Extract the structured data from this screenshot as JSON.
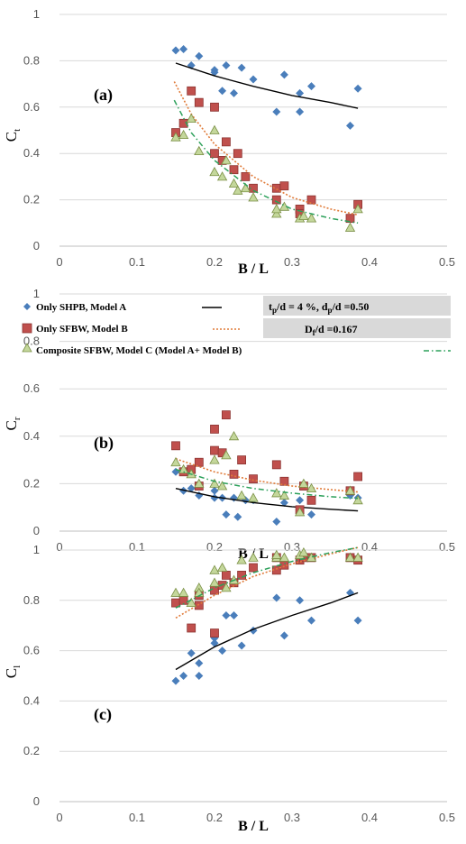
{
  "figure": {
    "legend": {
      "series_a": "Only SHPB, Model A",
      "series_b": "Only SFBW, Model B",
      "series_c": "Composite SFBW, Model C (Model A+ Model B)"
    },
    "params": {
      "line1_t": "t",
      "line1_t_sub": "p",
      "line1_a": "/d = 4 %, d",
      "line1_p_sub": "p",
      "line1_b": "/d =0.50",
      "line2_d": "D",
      "line2_sub": "f",
      "line2_rest": "/d =0.167"
    }
  },
  "chart_data": [
    {
      "type": "scatter",
      "panel_label": "(a)",
      "xlabel": "B / L",
      "ylabel": "C",
      "ylabel_sub": "t",
      "xlim": [
        0,
        0.5
      ],
      "ylim": [
        0,
        1
      ],
      "xticks": [
        "0",
        "0.1",
        "0.2",
        "0.3",
        "0.4",
        "0.5"
      ],
      "yticks": [
        "0",
        "0.2",
        "0.4",
        "0.6",
        "0.8",
        "1"
      ],
      "grid": "horizontal",
      "series": [
        {
          "name": "Only SHPB, Model A",
          "marker": "diamond",
          "color": "#4a7ebb",
          "points": [
            [
              0.15,
              0.845
            ],
            [
              0.16,
              0.85
            ],
            [
              0.17,
              0.78
            ],
            [
              0.18,
              0.82
            ],
            [
              0.2,
              0.76
            ],
            [
              0.2,
              0.75
            ],
            [
              0.21,
              0.67
            ],
            [
              0.215,
              0.78
            ],
            [
              0.225,
              0.66
            ],
            [
              0.235,
              0.77
            ],
            [
              0.25,
              0.72
            ],
            [
              0.28,
              0.58
            ],
            [
              0.29,
              0.74
            ],
            [
              0.31,
              0.66
            ],
            [
              0.31,
              0.58
            ],
            [
              0.325,
              0.69
            ],
            [
              0.375,
              0.52
            ],
            [
              0.385,
              0.68
            ]
          ],
          "trend": [
            [
              0.15,
              0.79
            ],
            [
              0.2,
              0.735
            ],
            [
              0.25,
              0.69
            ],
            [
              0.3,
              0.65
            ],
            [
              0.35,
              0.62
            ],
            [
              0.385,
              0.595
            ]
          ]
        },
        {
          "name": "Only SFBW, Model B",
          "marker": "square",
          "color": "#c0504d",
          "points": [
            [
              0.15,
              0.49
            ],
            [
              0.16,
              0.53
            ],
            [
              0.17,
              0.67
            ],
            [
              0.18,
              0.62
            ],
            [
              0.2,
              0.6
            ],
            [
              0.2,
              0.4
            ],
            [
              0.21,
              0.37
            ],
            [
              0.215,
              0.45
            ],
            [
              0.225,
              0.33
            ],
            [
              0.23,
              0.4
            ],
            [
              0.24,
              0.3
            ],
            [
              0.25,
              0.25
            ],
            [
              0.28,
              0.25
            ],
            [
              0.28,
              0.2
            ],
            [
              0.29,
              0.26
            ],
            [
              0.31,
              0.16
            ],
            [
              0.31,
              0.14
            ],
            [
              0.325,
              0.2
            ],
            [
              0.375,
              0.12
            ],
            [
              0.385,
              0.18
            ]
          ],
          "trend": [
            [
              0.148,
              0.71
            ],
            [
              0.17,
              0.57
            ],
            [
              0.2,
              0.44
            ],
            [
              0.25,
              0.3
            ],
            [
              0.3,
              0.21
            ],
            [
              0.35,
              0.16
            ],
            [
              0.385,
              0.135
            ]
          ]
        },
        {
          "name": "Composite SFBW, Model C (Model A+ Model B)",
          "marker": "triangle",
          "color": "#9bbb59",
          "points": [
            [
              0.15,
              0.47
            ],
            [
              0.16,
              0.48
            ],
            [
              0.17,
              0.55
            ],
            [
              0.18,
              0.41
            ],
            [
              0.2,
              0.5
            ],
            [
              0.2,
              0.32
            ],
            [
              0.21,
              0.3
            ],
            [
              0.215,
              0.37
            ],
            [
              0.225,
              0.27
            ],
            [
              0.23,
              0.24
            ],
            [
              0.24,
              0.25
            ],
            [
              0.25,
              0.21
            ],
            [
              0.28,
              0.14
            ],
            [
              0.28,
              0.16
            ],
            [
              0.29,
              0.17
            ],
            [
              0.31,
              0.12
            ],
            [
              0.315,
              0.13
            ],
            [
              0.325,
              0.12
            ],
            [
              0.375,
              0.08
            ],
            [
              0.385,
              0.16
            ]
          ],
          "trend": [
            [
              0.148,
              0.63
            ],
            [
              0.17,
              0.49
            ],
            [
              0.2,
              0.37
            ],
            [
              0.25,
              0.24
            ],
            [
              0.3,
              0.16
            ],
            [
              0.35,
              0.12
            ],
            [
              0.385,
              0.1
            ]
          ]
        }
      ]
    },
    {
      "type": "scatter",
      "panel_label": "(b)",
      "xlabel": "B / L",
      "ylabel": "C",
      "ylabel_sub": "r",
      "xlim": [
        0,
        0.5
      ],
      "ylim": [
        0,
        1
      ],
      "xticks": [
        "0",
        "0.1",
        "0.2",
        "0.3",
        "0.4",
        "0.5"
      ],
      "yticks": [
        "0",
        "0.2",
        "0.4",
        "0.6",
        "0.8",
        "1"
      ],
      "grid": "horizontal",
      "series": [
        {
          "name": "Only SHPB, Model A",
          "marker": "diamond",
          "color": "#4a7ebb",
          "points": [
            [
              0.15,
              0.25
            ],
            [
              0.16,
              0.17
            ],
            [
              0.17,
              0.18
            ],
            [
              0.18,
              0.15
            ],
            [
              0.2,
              0.17
            ],
            [
              0.2,
              0.14
            ],
            [
              0.21,
              0.14
            ],
            [
              0.215,
              0.07
            ],
            [
              0.225,
              0.14
            ],
            [
              0.23,
              0.06
            ],
            [
              0.24,
              0.13
            ],
            [
              0.25,
              0.13
            ],
            [
              0.28,
              0.04
            ],
            [
              0.29,
              0.12
            ],
            [
              0.31,
              0.08
            ],
            [
              0.31,
              0.13
            ],
            [
              0.325,
              0.07
            ],
            [
              0.375,
              0.15
            ],
            [
              0.385,
              0.14
            ]
          ],
          "trend": [
            [
              0.15,
              0.18
            ],
            [
              0.2,
              0.145
            ],
            [
              0.25,
              0.12
            ],
            [
              0.3,
              0.103
            ],
            [
              0.35,
              0.092
            ],
            [
              0.385,
              0.085
            ]
          ]
        },
        {
          "name": "Only SFBW, Model B",
          "marker": "square",
          "color": "#c0504d",
          "points": [
            [
              0.15,
              0.36
            ],
            [
              0.16,
              0.25
            ],
            [
              0.17,
              0.26
            ],
            [
              0.18,
              0.29
            ],
            [
              0.18,
              0.19
            ],
            [
              0.2,
              0.43
            ],
            [
              0.2,
              0.34
            ],
            [
              0.21,
              0.33
            ],
            [
              0.215,
              0.49
            ],
            [
              0.225,
              0.24
            ],
            [
              0.235,
              0.3
            ],
            [
              0.25,
              0.22
            ],
            [
              0.28,
              0.28
            ],
            [
              0.29,
              0.21
            ],
            [
              0.31,
              0.09
            ],
            [
              0.315,
              0.19
            ],
            [
              0.325,
              0.13
            ],
            [
              0.375,
              0.17
            ],
            [
              0.385,
              0.23
            ]
          ],
          "trend": [
            [
              0.15,
              0.305
            ],
            [
              0.2,
              0.25
            ],
            [
              0.25,
              0.215
            ],
            [
              0.3,
              0.19
            ],
            [
              0.35,
              0.175
            ],
            [
              0.385,
              0.165
            ]
          ]
        },
        {
          "name": "Composite SFBW, Model C (Model A+ Model B)",
          "marker": "triangle",
          "color": "#9bbb59",
          "points": [
            [
              0.15,
              0.29
            ],
            [
              0.16,
              0.26
            ],
            [
              0.17,
              0.24
            ],
            [
              0.18,
              0.2
            ],
            [
              0.2,
              0.3
            ],
            [
              0.2,
              0.2
            ],
            [
              0.21,
              0.19
            ],
            [
              0.215,
              0.32
            ],
            [
              0.225,
              0.4
            ],
            [
              0.235,
              0.15
            ],
            [
              0.25,
              0.14
            ],
            [
              0.28,
              0.16
            ],
            [
              0.29,
              0.15
            ],
            [
              0.31,
              0.08
            ],
            [
              0.315,
              0.2
            ],
            [
              0.325,
              0.18
            ],
            [
              0.375,
              0.17
            ],
            [
              0.385,
              0.13
            ]
          ],
          "trend": [
            [
              0.15,
              0.26
            ],
            [
              0.2,
              0.21
            ],
            [
              0.25,
              0.18
            ],
            [
              0.3,
              0.16
            ],
            [
              0.35,
              0.145
            ],
            [
              0.385,
              0.138
            ]
          ]
        }
      ]
    },
    {
      "type": "scatter",
      "panel_label": "(c)",
      "xlabel": "B / L",
      "ylabel": "C",
      "ylabel_sub": "l",
      "xlim": [
        0,
        0.5
      ],
      "ylim": [
        0,
        1
      ],
      "xticks": [
        "0",
        "0.1",
        "0.2",
        "0.3",
        "0.4",
        "0.5"
      ],
      "yticks": [
        "0",
        "0.2",
        "0.4",
        "0.6",
        "0.8",
        "1"
      ],
      "grid": "horizontal",
      "series": [
        {
          "name": "Only SHPB, Model A",
          "marker": "diamond",
          "color": "#4a7ebb",
          "points": [
            [
              0.15,
              0.48
            ],
            [
              0.16,
              0.5
            ],
            [
              0.17,
              0.59
            ],
            [
              0.18,
              0.5
            ],
            [
              0.18,
              0.55
            ],
            [
              0.2,
              0.63
            ],
            [
              0.2,
              0.65
            ],
            [
              0.21,
              0.6
            ],
            [
              0.215,
              0.74
            ],
            [
              0.225,
              0.74
            ],
            [
              0.235,
              0.62
            ],
            [
              0.25,
              0.68
            ],
            [
              0.28,
              0.81
            ],
            [
              0.29,
              0.66
            ],
            [
              0.31,
              0.8
            ],
            [
              0.325,
              0.72
            ],
            [
              0.375,
              0.83
            ],
            [
              0.385,
              0.72
            ]
          ],
          "trend": [
            [
              0.15,
              0.525
            ],
            [
              0.2,
              0.615
            ],
            [
              0.25,
              0.685
            ],
            [
              0.3,
              0.74
            ],
            [
              0.35,
              0.79
            ],
            [
              0.385,
              0.83
            ]
          ]
        },
        {
          "name": "Only SFBW, Model B",
          "marker": "square",
          "color": "#c0504d",
          "points": [
            [
              0.15,
              0.79
            ],
            [
              0.16,
              0.8
            ],
            [
              0.17,
              0.69
            ],
            [
              0.18,
              0.78
            ],
            [
              0.18,
              0.82
            ],
            [
              0.2,
              0.67
            ],
            [
              0.2,
              0.84
            ],
            [
              0.21,
              0.86
            ],
            [
              0.215,
              0.9
            ],
            [
              0.225,
              0.87
            ],
            [
              0.235,
              0.9
            ],
            [
              0.25,
              0.93
            ],
            [
              0.28,
              0.92
            ],
            [
              0.28,
              0.97
            ],
            [
              0.29,
              0.94
            ],
            [
              0.31,
              0.96
            ],
            [
              0.315,
              0.97
            ],
            [
              0.325,
              0.97
            ],
            [
              0.375,
              0.97
            ],
            [
              0.385,
              0.96
            ]
          ],
          "trend": [
            [
              0.15,
              0.73
            ],
            [
              0.2,
              0.82
            ],
            [
              0.25,
              0.895
            ],
            [
              0.3,
              0.945
            ],
            [
              0.35,
              0.985
            ],
            [
              0.385,
              1.01
            ]
          ]
        },
        {
          "name": "Composite SFBW, Model C (Model A+ Model B)",
          "marker": "triangle",
          "color": "#9bbb59",
          "points": [
            [
              0.15,
              0.83
            ],
            [
              0.16,
              0.83
            ],
            [
              0.17,
              0.79
            ],
            [
              0.18,
              0.85
            ],
            [
              0.18,
              0.83
            ],
            [
              0.2,
              0.92
            ],
            [
              0.2,
              0.87
            ],
            [
              0.21,
              0.93
            ],
            [
              0.215,
              0.85
            ],
            [
              0.225,
              0.88
            ],
            [
              0.235,
              0.96
            ],
            [
              0.25,
              0.97
            ],
            [
              0.28,
              0.97
            ],
            [
              0.28,
              0.98
            ],
            [
              0.29,
              0.97
            ],
            [
              0.31,
              0.98
            ],
            [
              0.315,
              0.99
            ],
            [
              0.325,
              0.97
            ],
            [
              0.375,
              0.97
            ],
            [
              0.385,
              0.97
            ]
          ],
          "trend": [
            [
              0.15,
              0.77
            ],
            [
              0.2,
              0.85
            ],
            [
              0.25,
              0.91
            ],
            [
              0.3,
              0.955
            ],
            [
              0.35,
              0.99
            ],
            [
              0.385,
              1.01
            ]
          ]
        }
      ]
    }
  ]
}
